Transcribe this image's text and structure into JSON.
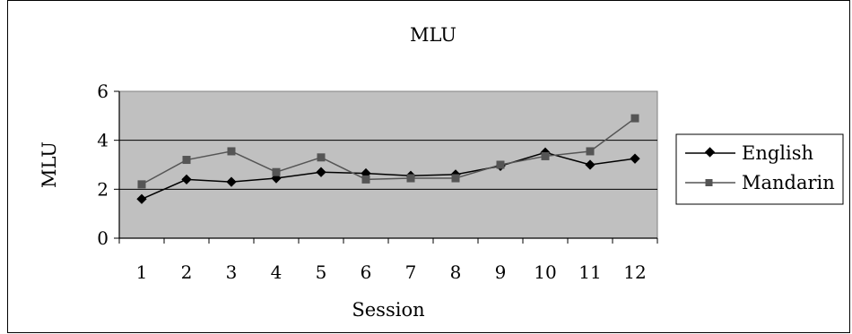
{
  "chart_data": {
    "type": "line",
    "title": "MLU",
    "xlabel": "Session",
    "ylabel": "MLU",
    "categories": [
      "1",
      "2",
      "3",
      "4",
      "5",
      "6",
      "7",
      "8",
      "9",
      "10",
      "11",
      "12"
    ],
    "ylim": [
      0,
      6
    ],
    "yticks": [
      "0",
      "2",
      "4",
      "6"
    ],
    "grid": true,
    "legend_position": "right",
    "plot_background": "#c0c0c0",
    "series": [
      {
        "name": "English",
        "marker": "diamond",
        "color": "#000000",
        "values": [
          1.6,
          2.4,
          2.3,
          2.45,
          2.7,
          2.65,
          2.55,
          2.6,
          2.95,
          3.5,
          3.0,
          3.25
        ]
      },
      {
        "name": "Mandarin",
        "marker": "square",
        "color": "#555555",
        "values": [
          2.2,
          3.2,
          3.55,
          2.7,
          3.3,
          2.4,
          2.45,
          2.45,
          3.0,
          3.35,
          3.55,
          4.9
        ]
      }
    ]
  }
}
